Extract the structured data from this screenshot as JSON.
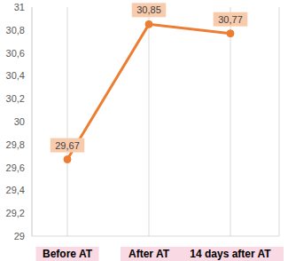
{
  "chart_data": {
    "type": "line",
    "categories": [
      "Before AT",
      "After AT",
      "14 days after AT"
    ],
    "values": [
      29.67,
      30.85,
      30.77
    ],
    "value_labels": [
      "29,67",
      "30,85",
      "30,77"
    ],
    "color": "#ed7d31",
    "ylim": [
      29,
      31
    ],
    "yticks": [
      29,
      {
        "value": 29.2,
        "label": "29,2"
      },
      {
        "value": 29.4,
        "label": "29,4"
      },
      {
        "value": 29.6,
        "label": "29,6"
      },
      {
        "value": 29.8,
        "label": "29,8"
      },
      30,
      {
        "value": 30.2,
        "label": "30,2"
      },
      {
        "value": 30.4,
        "label": "30,4"
      },
      {
        "value": 30.6,
        "label": "30,6"
      },
      {
        "value": 30.8,
        "label": "30,8"
      },
      31
    ],
    "grid": "x",
    "data_labels": true,
    "marker": "circle"
  }
}
